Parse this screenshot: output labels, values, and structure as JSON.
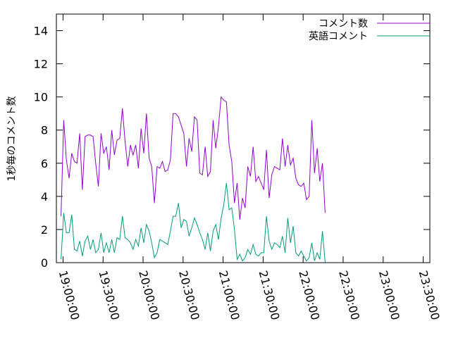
{
  "chart_data": {
    "type": "line",
    "ylabel": "1秒毎のコメント数",
    "ylim": [
      0,
      15
    ],
    "yticks": [
      0,
      2,
      4,
      6,
      8,
      10,
      12,
      14
    ],
    "xlim": [
      "18:55:00",
      "23:35:00"
    ],
    "xticks": [
      "19:00:00",
      "19:30:00",
      "20:00:00",
      "20:30:00",
      "21:00:00",
      "21:30:00",
      "22:00:00",
      "22:30:00",
      "23:00:00",
      "23:30:00"
    ],
    "grid": false,
    "legend_position": "top-right",
    "series": [
      {
        "name": "コメント数",
        "color": "#9400d3",
        "start": "18:58:30",
        "step_seconds": 120,
        "values": [
          2.8,
          8.6,
          6.2,
          5.1,
          6.6,
          6.1,
          6.0,
          7.8,
          4.4,
          7.6,
          7.7,
          7.7,
          7.6,
          6.0,
          4.6,
          7.8,
          6.6,
          7.0,
          5.6,
          8.0,
          6.5,
          7.4,
          7.5,
          9.3,
          7.3,
          5.8,
          7.1,
          6.5,
          7.1,
          5.7,
          8.1,
          6.6,
          9.0,
          6.3,
          5.8,
          3.6,
          5.8,
          5.7,
          6.1,
          5.5,
          5.6,
          6.2,
          9.0,
          9.0,
          8.8,
          8.3,
          7.8,
          5.8,
          7.5,
          6.7,
          8.8,
          8.6,
          5.4,
          5.3,
          7.0,
          5.2,
          5.5,
          8.6,
          6.9,
          8.2,
          10.0,
          9.8,
          9.7,
          7.1,
          6.1,
          3.6,
          4.8,
          2.6,
          3.9,
          3.3,
          5.8,
          5.2,
          7.0,
          4.9,
          5.2,
          4.8,
          4.4,
          6.8,
          3.9,
          5.3,
          5.8,
          5.7,
          5.6,
          7.5,
          5.8,
          7.1,
          5.9,
          6.3,
          5.1,
          4.7,
          4.6,
          4.8,
          3.8,
          4.0,
          8.6,
          5.4,
          6.9,
          4.9,
          6.0,
          3.0
        ]
      },
      {
        "name": "英語コメント",
        "color": "#009e73",
        "start": "18:58:30",
        "step_seconds": 120,
        "values": [
          0.2,
          3.0,
          1.8,
          1.8,
          2.9,
          0.8,
          0.7,
          1.3,
          0.4,
          1.3,
          1.6,
          0.8,
          1.4,
          0.6,
          0.8,
          1.8,
          0.6,
          1.2,
          0.6,
          1.4,
          0.6,
          1.5,
          1.4,
          2.8,
          1.5,
          1.4,
          1.2,
          0.8,
          1.4,
          1.0,
          2.1,
          1.2,
          2.3,
          1.9,
          1.2,
          0.3,
          0.6,
          1.4,
          1.3,
          1.2,
          1.1,
          1.9,
          2.8,
          2.8,
          3.6,
          2.1,
          2.6,
          2.5,
          1.6,
          2.1,
          2.7,
          2.3,
          1.8,
          1.4,
          0.8,
          1.8,
          0.7,
          1.9,
          2.3,
          1.4,
          2.7,
          3.5,
          4.8,
          3.2,
          3.3,
          2.0,
          0.2,
          0.5,
          0.1,
          0.3,
          0.8,
          0.5,
          1.1,
          0.5,
          0.4,
          0.6,
          0.6,
          2.8,
          1.3,
          0.8,
          1.2,
          1.1,
          0.9,
          1.6,
          0.6,
          2.7,
          1.2,
          2.2,
          0.6,
          0.4,
          0.7,
          0.4,
          0.1,
          0.3,
          1.2,
          0.1,
          0.6,
          0.2,
          1.9,
          0.0
        ]
      }
    ]
  }
}
